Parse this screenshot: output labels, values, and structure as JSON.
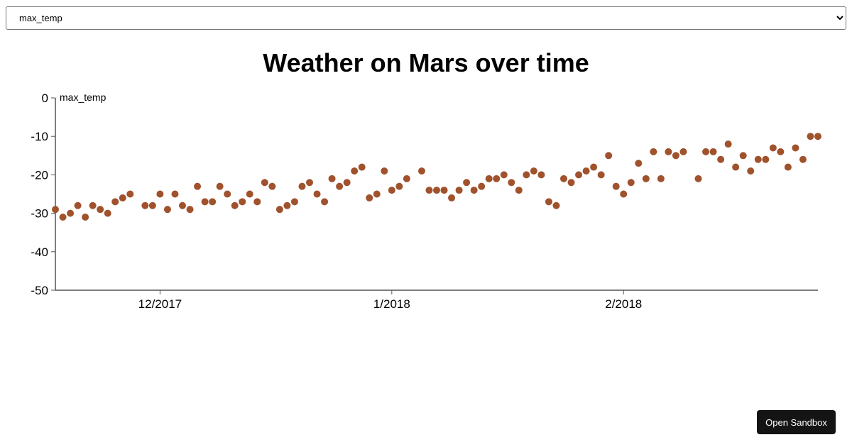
{
  "select": {
    "value": "max_temp",
    "options": [
      "max_temp"
    ]
  },
  "sandbox_button": "Open Sandbox",
  "colors": {
    "point": "#a0522d",
    "axis": "#555555"
  },
  "chart_data": {
    "type": "scatter",
    "title": "Weather on Mars over time",
    "ylabel": "max_temp",
    "xlabel": "",
    "ylim": [
      -50,
      0
    ],
    "yticks": [
      0,
      -10,
      -20,
      -30,
      -40,
      -50
    ],
    "xlim": [
      "2017-11-17",
      "2018-02-27"
    ],
    "xticks": [
      {
        "date": "2017-12-01",
        "label": "12/2017"
      },
      {
        "date": "2018-01-01",
        "label": "1/2018"
      },
      {
        "date": "2018-02-01",
        "label": "2/2018"
      }
    ],
    "start_date": "2017-11-17",
    "interval": "daily",
    "values": [
      -29,
      -31,
      -30,
      -28,
      -31,
      -28,
      -29,
      -30,
      -27,
      -26,
      -25,
      null,
      -28,
      -28,
      -25,
      -29,
      -25,
      -28,
      -29,
      -23,
      -27,
      -27,
      -23,
      -25,
      -28,
      -27,
      -25,
      -27,
      -22,
      -23,
      -29,
      -28,
      -27,
      -23,
      -22,
      -25,
      -27,
      -21,
      -23,
      -22,
      -19,
      -18,
      -26,
      -25,
      -19,
      -24,
      -23,
      -21,
      null,
      -19,
      -24,
      -24,
      -24,
      -26,
      -24,
      -22,
      -24,
      -23,
      -21,
      -21,
      -20,
      -22,
      -24,
      -20,
      -19,
      -20,
      -27,
      -28,
      -21,
      -22,
      -20,
      -19,
      -18,
      -20,
      -15,
      -23,
      -25,
      -22,
      -17,
      -21,
      -14,
      -21,
      -14,
      -15,
      -14,
      null,
      -21,
      -14,
      -14,
      -16,
      -12,
      -18,
      -15,
      -19,
      -16,
      -16,
      -13,
      -14,
      -18,
      -13,
      -16,
      -10,
      -10
    ]
  }
}
